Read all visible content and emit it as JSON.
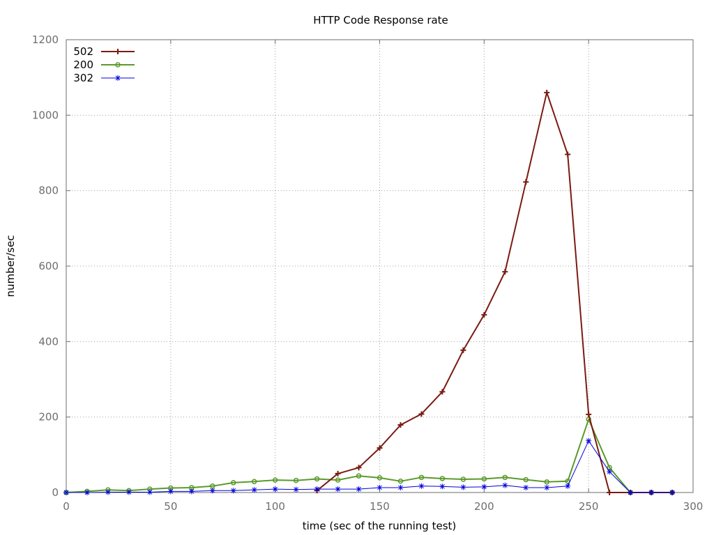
{
  "chart_data": {
    "type": "line",
    "title": "HTTP Code Response rate",
    "xlabel": "time (sec of the running test)",
    "ylabel": "number/sec",
    "xlim": [
      0,
      300
    ],
    "ylim": [
      0,
      1200
    ],
    "xticks": [
      0,
      50,
      100,
      150,
      200,
      250,
      300
    ],
    "yticks": [
      0,
      200,
      400,
      600,
      800,
      1000,
      1200
    ],
    "grid": true,
    "legend_position": "top-left",
    "series": [
      {
        "name": "502",
        "color": "#7a1a12",
        "marker": "plus",
        "line_width": 2,
        "x": [
          120,
          130,
          140,
          150,
          160,
          170,
          180,
          190,
          200,
          210,
          220,
          230,
          240,
          250,
          260,
          270,
          280,
          290
        ],
        "y": [
          5,
          50,
          66,
          118,
          179,
          208,
          267,
          377,
          471,
          585,
          823,
          1060,
          896,
          207,
          0,
          0,
          0,
          0
        ]
      },
      {
        "name": "200",
        "color": "#5a9a2a",
        "marker": "circle",
        "line_width": 2,
        "x": [
          0,
          10,
          20,
          30,
          40,
          50,
          60,
          70,
          80,
          90,
          100,
          110,
          120,
          130,
          140,
          150,
          160,
          170,
          180,
          190,
          200,
          210,
          220,
          230,
          240,
          250,
          260,
          270,
          280,
          290
        ],
        "y": [
          0,
          3,
          7,
          5,
          9,
          12,
          13,
          17,
          26,
          29,
          33,
          32,
          36,
          33,
          44,
          39,
          30,
          40,
          37,
          35,
          36,
          40,
          34,
          28,
          30,
          194,
          66,
          0,
          0,
          0
        ]
      },
      {
        "name": "302",
        "color": "#0000e0",
        "marker": "star",
        "line_width": 1,
        "x": [
          0,
          10,
          20,
          30,
          40,
          50,
          60,
          70,
          80,
          90,
          100,
          110,
          120,
          130,
          140,
          150,
          160,
          170,
          180,
          190,
          200,
          210,
          220,
          230,
          240,
          250,
          260,
          270,
          280,
          290
        ],
        "y": [
          0,
          0,
          1,
          1,
          1,
          3,
          3,
          5,
          5,
          7,
          9,
          8,
          9,
          9,
          9,
          13,
          13,
          17,
          16,
          14,
          15,
          19,
          13,
          13,
          17,
          137,
          55,
          0,
          0,
          0
        ]
      }
    ]
  }
}
